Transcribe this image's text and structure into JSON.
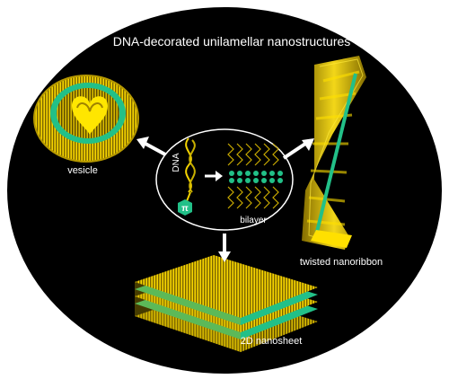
{
  "title": "DNA-decorated unilamellar nanostructures",
  "center": {
    "dna_label": "DNA",
    "pi_label": "π",
    "bilayer_label": "bilayer"
  },
  "structures": {
    "vesicle": "vesicle",
    "nanoribbon": "twisted nanoribbon",
    "nanosheet": "2D nanosheet"
  },
  "colors": {
    "background": "#000000",
    "strand": "#f2d200",
    "core": "#22c088",
    "arrow": "#ffffff"
  }
}
